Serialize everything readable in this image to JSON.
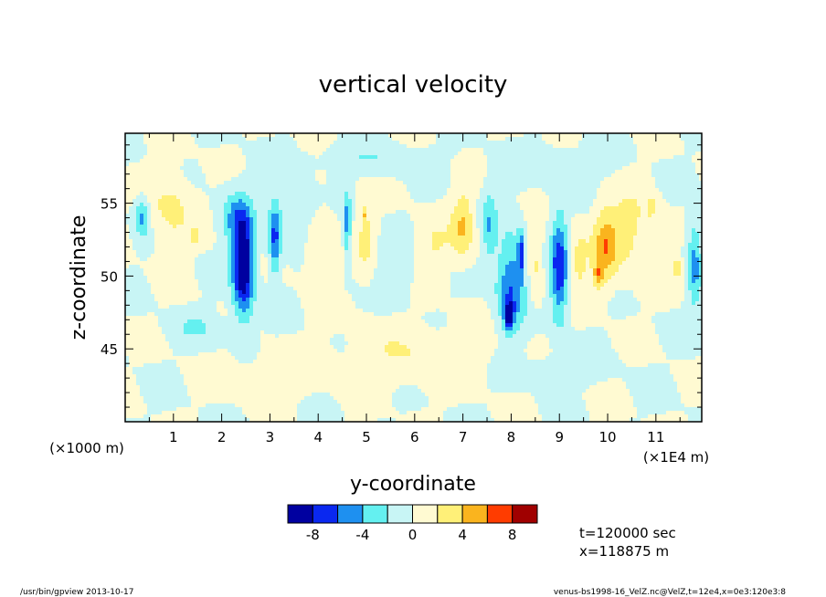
{
  "chart_data": {
    "type": "heatmap",
    "title": "vertical velocity",
    "xlabel": "y-coordinate",
    "ylabel": "z-coordinate",
    "x_unit_label": "(×1E4 m)",
    "y_unit_label": "(×1000 m)",
    "xlim": [
      0.0,
      11.95
    ],
    "ylim": [
      40.0,
      59.8
    ],
    "x_ticks": [
      1,
      2,
      3,
      4,
      5,
      6,
      7,
      8,
      9,
      10,
      11
    ],
    "y_ticks": [
      45,
      50,
      55
    ],
    "levels": [
      -10,
      -8,
      -6,
      -4,
      -2,
      0,
      2,
      4,
      6,
      8,
      10
    ],
    "colorbar_colors": [
      "#0000a0",
      "#0a28f0",
      "#1e90f0",
      "#64f0f0",
      "#c8f5f5",
      "#fffad2",
      "#fff078",
      "#fab41e",
      "#ff3c00",
      "#a00000"
    ],
    "colorbar_ticklabels": [
      "-8",
      "-4",
      "0",
      "4",
      "8"
    ],
    "colorbar_tick_values": [
      -8,
      -4,
      0,
      4,
      8
    ],
    "features": [
      {
        "y": 0.35,
        "z": 54.0,
        "amp": -4.5,
        "sy": 0.15,
        "sz": 1.4
      },
      {
        "y": 0.95,
        "z": 54.5,
        "amp": 2.6,
        "sy": 0.45,
        "sz": 2.5
      },
      {
        "y": 1.45,
        "z": 52.8,
        "amp": 3.0,
        "sy": 0.1,
        "sz": 0.5
      },
      {
        "y": 2.45,
        "z": 50.8,
        "amp": -11.0,
        "sy": 0.22,
        "sz": 3.4
      },
      {
        "y": 2.25,
        "z": 54.0,
        "amp": -3.5,
        "sy": 0.3,
        "sz": 1.8
      },
      {
        "y": 3.1,
        "z": 52.5,
        "amp": -6.5,
        "sy": 0.12,
        "sz": 2.4
      },
      {
        "y": 3.7,
        "z": 54.5,
        "amp": -2.5,
        "sy": 0.6,
        "sz": 2.0
      },
      {
        "y": 4.05,
        "z": 53.0,
        "amp": 2.6,
        "sy": 0.35,
        "sz": 3.5
      },
      {
        "y": 4.6,
        "z": 53.5,
        "amp": -5.0,
        "sy": 0.08,
        "sz": 2.2
      },
      {
        "y": 5.0,
        "z": 52.5,
        "amp": 2.4,
        "sy": 0.2,
        "sz": 3.0
      },
      {
        "y": 4.95,
        "z": 54.2,
        "amp": 3.5,
        "sy": 0.05,
        "sz": 0.4
      },
      {
        "y": 5.6,
        "z": 50.5,
        "amp": -2.0,
        "sy": 0.4,
        "sz": 2.0
      },
      {
        "y": 6.4,
        "z": 52.0,
        "amp": 2.0,
        "sy": 0.4,
        "sz": 2.0
      },
      {
        "y": 7.0,
        "z": 53.5,
        "amp": 4.0,
        "sy": 0.22,
        "sz": 2.3
      },
      {
        "y": 7.55,
        "z": 53.5,
        "amp": -3.5,
        "sy": 0.15,
        "sz": 2.5
      },
      {
        "y": 8.0,
        "z": 49.5,
        "amp": -6.0,
        "sy": 0.3,
        "sz": 3.2
      },
      {
        "y": 7.95,
        "z": 47.3,
        "amp": -7.0,
        "sy": 0.1,
        "sz": 1.0
      },
      {
        "y": 8.2,
        "z": 51.5,
        "amp": -6.0,
        "sy": 0.06,
        "sz": 1.5
      },
      {
        "y": 8.5,
        "z": 51.0,
        "amp": 2.5,
        "sy": 0.15,
        "sz": 3.0
      },
      {
        "y": 9.0,
        "z": 50.5,
        "amp": -7.5,
        "sy": 0.18,
        "sz": 3.6
      },
      {
        "y": 9.4,
        "z": 51.0,
        "amp": 2.6,
        "sy": 0.2,
        "sz": 2.5
      },
      {
        "y": 9.95,
        "z": 52.0,
        "amp": 4.8,
        "sy": 0.25,
        "sz": 2.5
      },
      {
        "y": 9.8,
        "z": 50.0,
        "amp": 4.0,
        "sy": 0.1,
        "sz": 1.0
      },
      {
        "y": 10.5,
        "z": 53.0,
        "amp": 2.6,
        "sy": 0.5,
        "sz": 3.0
      },
      {
        "y": 10.9,
        "z": 54.8,
        "amp": 3.5,
        "sy": 0.06,
        "sz": 0.6
      },
      {
        "y": 11.45,
        "z": 50.5,
        "amp": 4.0,
        "sy": 0.1,
        "sz": 0.6
      },
      {
        "y": 11.8,
        "z": 51.0,
        "amp": -4.5,
        "sy": 0.15,
        "sz": 3.3
      },
      {
        "y": 6.0,
        "z": 44.5,
        "amp": 1.8,
        "sy": 1.5,
        "sz": 2.0
      },
      {
        "y": 3.0,
        "z": 43.0,
        "amp": 1.5,
        "sy": 1.0,
        "sz": 1.5
      },
      {
        "y": 9.0,
        "z": 43.5,
        "amp": -1.8,
        "sy": 0.8,
        "sz": 1.0
      },
      {
        "y": 1.5,
        "z": 46.5,
        "amp": -2.0,
        "sy": 0.5,
        "sz": 1.0
      },
      {
        "y": 5.0,
        "z": 58.0,
        "amp": -1.8,
        "sy": 1.2,
        "sz": 1.0
      },
      {
        "y": 9.0,
        "z": 57.5,
        "amp": -1.8,
        "sy": 1.0,
        "sz": 1.2
      }
    ]
  },
  "info": {
    "time": "t=120000 sec",
    "position": "x=118875 m"
  },
  "footer": {
    "left": "/usr/bin/gpview   2013-10-17",
    "right": "venus-bs1998-16_VelZ.nc@VelZ,t=12e4,x=0e3:120e3:8"
  }
}
